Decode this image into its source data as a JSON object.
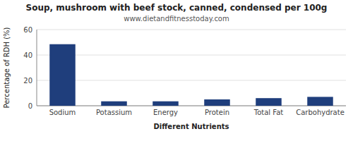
{
  "chart_data": {
    "type": "bar",
    "title": "Soup, mushroom with beef stock, canned, condensed per 100g",
    "subtitle": "www.dietandfitnesstoday.com",
    "xlabel": "Different Nutrients",
    "ylabel": "Percentage of RDH (%)",
    "categories": [
      "Sodium",
      "Potassium",
      "Energy",
      "Protein",
      "Total Fat",
      "Carbohydrate"
    ],
    "values": [
      48.5,
      3.5,
      3.5,
      5.0,
      6.0,
      7.0
    ],
    "color": "#1F3E7C",
    "ylim": [
      0,
      60
    ],
    "yticks": [
      0,
      20,
      40,
      60
    ],
    "grid": true
  }
}
